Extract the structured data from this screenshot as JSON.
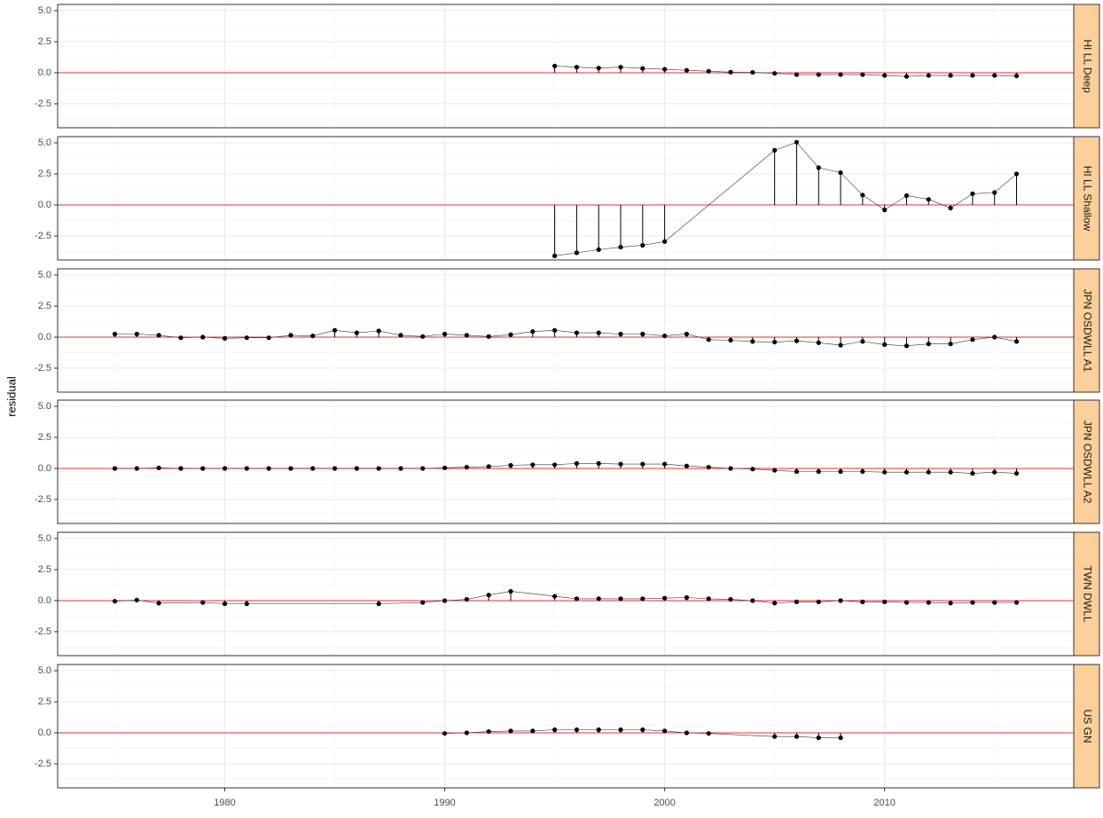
{
  "ylabel": "residual",
  "chart_data": [
    {
      "type": "line",
      "facet": "HI LL Deep",
      "color": "#000000",
      "hline": 0,
      "hline_color": "#e8302a",
      "x": [
        1995,
        1996,
        1997,
        1998,
        1999,
        2000,
        2001,
        2002,
        2003,
        2004,
        2005,
        2006,
        2007,
        2008,
        2009,
        2010,
        2011,
        2012,
        2013,
        2014,
        2015,
        2016
      ],
      "values": [
        0.55,
        0.45,
        0.38,
        0.45,
        0.35,
        0.28,
        0.2,
        0.12,
        0.05,
        0.03,
        -0.05,
        -0.15,
        -0.15,
        -0.15,
        -0.15,
        -0.22,
        -0.3,
        -0.22,
        -0.22,
        -0.22,
        -0.22,
        -0.25
      ],
      "xlim": [
        1972.4,
        2018.6
      ],
      "xticks": [
        1980,
        1990,
        2000,
        2010
      ],
      "ylim": [
        -4.43,
        5.5
      ],
      "yticks": [
        {
          "value": -2.5,
          "label": "-2.5"
        },
        {
          "value": 0,
          "label": "0.0"
        },
        {
          "value": 2.5,
          "label": "2.5"
        },
        {
          "value": 5,
          "label": "5.0"
        }
      ]
    },
    {
      "type": "line",
      "facet": "HI LL Shallow",
      "color": "#000000",
      "hline": 0,
      "hline_color": "#e8302a",
      "x": [
        1995,
        1996,
        1997,
        1998,
        1999,
        2000,
        2005,
        2006,
        2007,
        2008,
        2009,
        2010,
        2011,
        2012,
        2013,
        2014,
        2015,
        2016
      ],
      "values": [
        -4.1,
        -3.85,
        -3.6,
        -3.4,
        -3.25,
        -2.95,
        4.4,
        5.05,
        3.0,
        2.6,
        0.8,
        -0.4,
        0.75,
        0.45,
        -0.25,
        0.9,
        1.0,
        2.5
      ],
      "xlim": [
        1972.4,
        2018.6
      ],
      "xticks": [
        1980,
        1990,
        2000,
        2010
      ],
      "ylim": [
        -4.43,
        5.5
      ],
      "yticks": [
        {
          "value": -2.5,
          "label": "-2.5"
        },
        {
          "value": 0,
          "label": "0.0"
        },
        {
          "value": 2.5,
          "label": "2.5"
        },
        {
          "value": 5,
          "label": "5.0"
        }
      ]
    },
    {
      "type": "line",
      "facet": "JPN OSDWLL A1",
      "color": "#000000",
      "hline": 0,
      "hline_color": "#e8302a",
      "x": [
        1975,
        1976,
        1977,
        1978,
        1979,
        1980,
        1981,
        1982,
        1983,
        1984,
        1985,
        1986,
        1987,
        1988,
        1989,
        1990,
        1991,
        1992,
        1993,
        1994,
        1995,
        1996,
        1997,
        1998,
        1999,
        2000,
        2001,
        2002,
        2003,
        2004,
        2005,
        2006,
        2007,
        2008,
        2009,
        2010,
        2011,
        2012,
        2013,
        2014,
        2015,
        2016
      ],
      "values": [
        0.25,
        0.25,
        0.15,
        -0.05,
        0.0,
        -0.1,
        -0.05,
        -0.05,
        0.15,
        0.1,
        0.55,
        0.35,
        0.5,
        0.15,
        0.05,
        0.25,
        0.15,
        0.05,
        0.2,
        0.45,
        0.55,
        0.35,
        0.35,
        0.25,
        0.25,
        0.1,
        0.25,
        -0.2,
        -0.25,
        -0.35,
        -0.4,
        -0.3,
        -0.45,
        -0.65,
        -0.35,
        -0.6,
        -0.7,
        -0.55,
        -0.55,
        -0.2,
        0.0,
        -0.35
      ],
      "xlim": [
        1972.4,
        2018.6
      ],
      "xticks": [
        1980,
        1990,
        2000,
        2010
      ],
      "ylim": [
        -4.43,
        5.5
      ],
      "yticks": [
        {
          "value": -2.5,
          "label": "-2.5"
        },
        {
          "value": 0,
          "label": "0.0"
        },
        {
          "value": 2.5,
          "label": "2.5"
        },
        {
          "value": 5,
          "label": "5.0"
        }
      ]
    },
    {
      "type": "line",
      "facet": "JPN OSDWLL A2",
      "color": "#000000",
      "hline": 0,
      "hline_color": "#e8302a",
      "x": [
        1975,
        1976,
        1977,
        1978,
        1979,
        1980,
        1981,
        1982,
        1983,
        1984,
        1985,
        1986,
        1987,
        1988,
        1989,
        1990,
        1991,
        1992,
        1993,
        1994,
        1995,
        1996,
        1997,
        1998,
        1999,
        2000,
        2001,
        2002,
        2003,
        2004,
        2005,
        2006,
        2007,
        2008,
        2009,
        2010,
        2011,
        2012,
        2013,
        2014,
        2015,
        2016
      ],
      "values": [
        0,
        0,
        0.05,
        0,
        0,
        0,
        0,
        0,
        0,
        0,
        0,
        0,
        0,
        0,
        0,
        0.05,
        0.1,
        0.15,
        0.25,
        0.3,
        0.3,
        0.4,
        0.4,
        0.35,
        0.35,
        0.35,
        0.2,
        0.1,
        0.0,
        -0.05,
        -0.15,
        -0.25,
        -0.25,
        -0.25,
        -0.25,
        -0.3,
        -0.3,
        -0.3,
        -0.3,
        -0.4,
        -0.3,
        -0.4
      ],
      "xlim": [
        1972.4,
        2018.6
      ],
      "xticks": [
        1980,
        1990,
        2000,
        2010
      ],
      "ylim": [
        -4.43,
        5.5
      ],
      "yticks": [
        {
          "value": -2.5,
          "label": "-2.5"
        },
        {
          "value": 0,
          "label": "0.0"
        },
        {
          "value": 2.5,
          "label": "2.5"
        },
        {
          "value": 5,
          "label": "5.0"
        }
      ]
    },
    {
      "type": "line",
      "facet": "TWN DWLL",
      "color": "#000000",
      "hline": 0,
      "hline_color": "#e8302a",
      "x": [
        1975,
        1976,
        1977,
        1979,
        1980,
        1981,
        1987,
        1989,
        1990,
        1991,
        1992,
        1993,
        1995,
        1996,
        1997,
        1998,
        1999,
        2000,
        2001,
        2002,
        2003,
        2004,
        2005,
        2006,
        2007,
        2008,
        2009,
        2010,
        2011,
        2012,
        2013,
        2014,
        2015,
        2016
      ],
      "values": [
        -0.05,
        0.05,
        -0.2,
        -0.15,
        -0.25,
        -0.25,
        -0.25,
        -0.15,
        0.0,
        0.1,
        0.45,
        0.75,
        0.35,
        0.15,
        0.15,
        0.15,
        0.15,
        0.2,
        0.25,
        0.15,
        0.1,
        0.0,
        -0.2,
        -0.1,
        -0.1,
        0.0,
        -0.1,
        -0.1,
        -0.15,
        -0.15,
        -0.2,
        -0.15,
        -0.15,
        -0.15
      ],
      "xlim": [
        1972.4,
        2018.6
      ],
      "xticks": [
        1980,
        1990,
        2000,
        2010
      ],
      "ylim": [
        -4.43,
        5.5
      ],
      "yticks": [
        {
          "value": -2.5,
          "label": "-2.5"
        },
        {
          "value": 0,
          "label": "0.0"
        },
        {
          "value": 2.5,
          "label": "2.5"
        },
        {
          "value": 5,
          "label": "5.0"
        }
      ]
    },
    {
      "type": "line",
      "facet": "US GN",
      "color": "#000000",
      "hline": 0,
      "hline_color": "#e8302a",
      "x": [
        1990,
        1991,
        1992,
        1993,
        1994,
        1995,
        1996,
        1997,
        1998,
        1999,
        2000,
        2001,
        2002,
        2005,
        2006,
        2007,
        2008
      ],
      "values": [
        -0.05,
        0.0,
        0.1,
        0.15,
        0.15,
        0.25,
        0.25,
        0.25,
        0.25,
        0.25,
        0.15,
        0.0,
        -0.05,
        -0.3,
        -0.3,
        -0.4,
        -0.4
      ],
      "xlim": [
        1972.4,
        2018.6
      ],
      "xticks": [
        1980,
        1990,
        2000,
        2010
      ],
      "ylim": [
        -4.43,
        5.5
      ],
      "yticks": [
        {
          "value": -2.5,
          "label": "-2.5"
        },
        {
          "value": 0,
          "label": "0.0"
        },
        {
          "value": 2.5,
          "label": "2.5"
        },
        {
          "value": 5,
          "label": "5.0"
        }
      ]
    }
  ]
}
